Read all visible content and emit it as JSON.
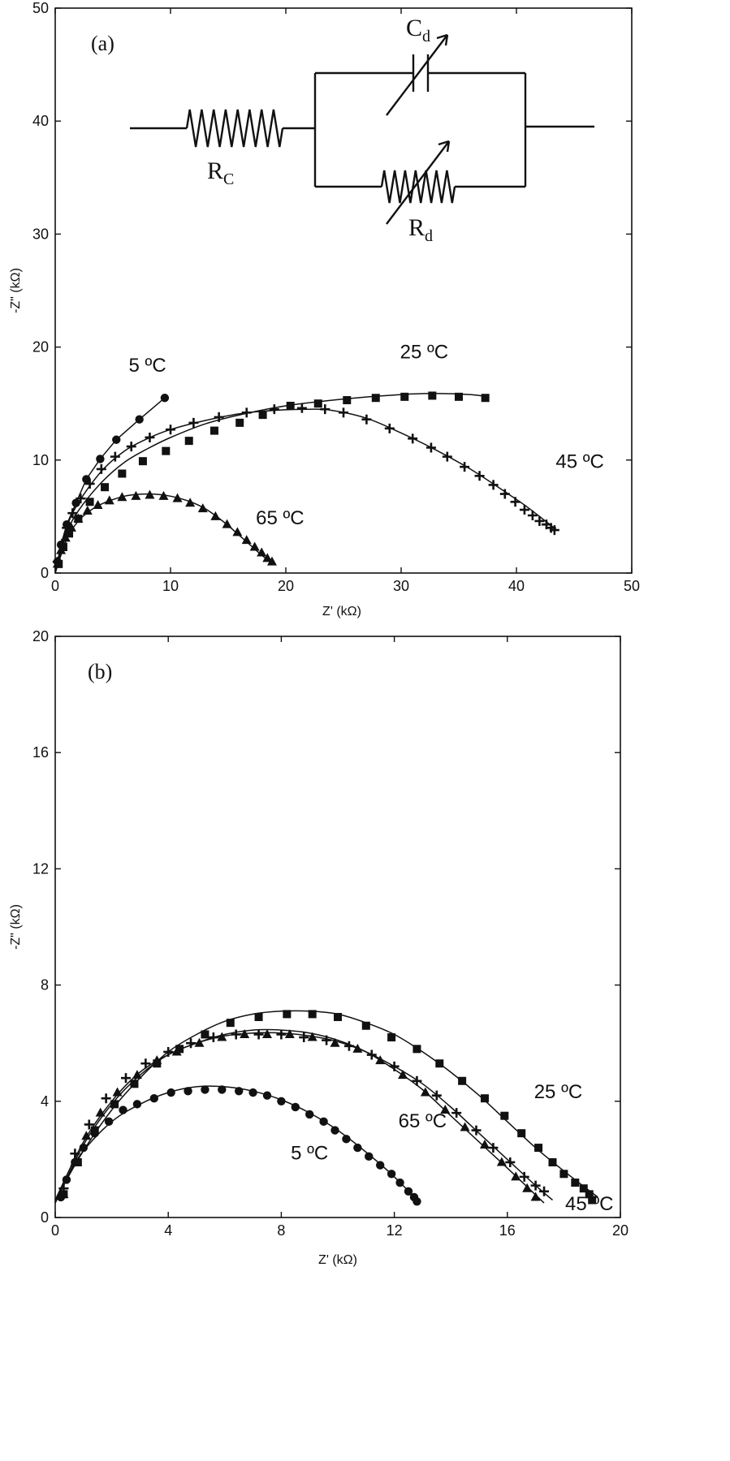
{
  "chart_data": [
    {
      "type": "scatter",
      "panel_label": "(a)",
      "xlabel": "Z' (kΩ)",
      "ylabel": "-Z\" (kΩ)",
      "xlim": [
        0,
        50
      ],
      "ylim": [
        0,
        50
      ],
      "xticks": [
        0,
        10,
        20,
        30,
        40,
        50
      ],
      "yticks": [
        0,
        10,
        20,
        30,
        40,
        50
      ],
      "xtick_labels": [
        "0",
        "10",
        "20",
        "30",
        "40",
        "50"
      ],
      "ytick_labels": [
        "0",
        "10",
        "20",
        "30",
        "40",
        "50"
      ],
      "grid": false,
      "circuit": {
        "rc_label": "R",
        "rc_sub": "C",
        "cd_label": "C",
        "cd_sub": "d",
        "rd_label": "R",
        "rd_sub": "d"
      },
      "series": [
        {
          "name": "5 °C",
          "marker": "circle",
          "fit": "connect",
          "x": [
            0.2,
            0.5,
            1.0,
            1.8,
            2.7,
            3.9,
            5.3,
            7.3,
            9.5
          ],
          "y": [
            1.0,
            2.5,
            4.3,
            6.2,
            8.3,
            10.1,
            11.8,
            13.6,
            15.5
          ]
        },
        {
          "name": "25 °C",
          "marker": "square",
          "fit": "smooth",
          "x": [
            0.3,
            0.7,
            1.2,
            2.0,
            3.0,
            4.3,
            5.8,
            7.6,
            9.6,
            11.6,
            13.8,
            16.0,
            18.0,
            20.4,
            22.8,
            25.3,
            27.8,
            30.3,
            32.7,
            35.0,
            37.3
          ],
          "y": [
            0.8,
            2.3,
            3.5,
            4.8,
            6.3,
            7.6,
            8.8,
            9.9,
            10.8,
            11.7,
            12.6,
            13.3,
            14.0,
            14.8,
            15.0,
            15.3,
            15.5,
            15.6,
            15.7,
            15.6,
            15.5
          ],
          "fit_x": [
            0,
            1,
            2,
            4,
            6,
            8,
            10,
            13,
            16,
            20,
            25,
            30,
            33,
            36,
            37.5
          ],
          "fit_y": [
            0,
            3.5,
            5.5,
            8,
            9.8,
            11,
            12,
            13.2,
            14,
            14.8,
            15.4,
            15.8,
            15.9,
            15.8,
            15.6
          ]
        },
        {
          "name": "45 °C",
          "marker": "plus",
          "fit": "smooth",
          "x": [
            0.2,
            0.6,
            1.0,
            1.5,
            2.2,
            3.0,
            4.0,
            5.2,
            6.6,
            8.2,
            10.0,
            12.0,
            14.2,
            16.6,
            19.0,
            21.4,
            23.4,
            25.0,
            27.0,
            29.0,
            31.0,
            32.6,
            34.0,
            35.5,
            36.8,
            38.0,
            39.0,
            39.9,
            40.7,
            41.4,
            42.0,
            42.6,
            43.0,
            43.3
          ],
          "y": [
            1.0,
            2.6,
            4.0,
            5.3,
            6.6,
            7.9,
            9.2,
            10.3,
            11.2,
            12.0,
            12.7,
            13.3,
            13.8,
            14.2,
            14.5,
            14.6,
            14.5,
            14.2,
            13.6,
            12.8,
            11.9,
            11.1,
            10.3,
            9.4,
            8.6,
            7.8,
            7.0,
            6.3,
            5.6,
            5.1,
            4.6,
            4.3,
            4.0,
            3.8
          ],
          "fit_x": [
            0,
            1,
            2,
            4,
            6,
            8,
            10,
            13,
            16,
            19,
            22,
            24,
            27,
            30,
            33,
            36,
            39,
            41,
            43.5
          ],
          "fit_y": [
            0,
            4,
            6.2,
            9,
            10.8,
            11.9,
            12.7,
            13.5,
            14.1,
            14.4,
            14.5,
            14.4,
            13.7,
            12.4,
            10.9,
            9.2,
            7.2,
            5.8,
            3.8
          ]
        },
        {
          "name": "65 °C",
          "marker": "triangle",
          "fit": "smooth",
          "x": [
            0.2,
            0.5,
            0.9,
            1.4,
            2.0,
            2.8,
            3.7,
            4.7,
            5.8,
            7.0,
            8.2,
            9.4,
            10.6,
            11.7,
            12.8,
            13.9,
            14.9,
            15.8,
            16.6,
            17.3,
            17.9,
            18.4,
            18.8
          ],
          "y": [
            0.8,
            2.0,
            3.1,
            4.0,
            4.8,
            5.5,
            6.0,
            6.4,
            6.7,
            6.8,
            6.9,
            6.8,
            6.6,
            6.2,
            5.7,
            5.0,
            4.3,
            3.6,
            2.9,
            2.3,
            1.8,
            1.3,
            1.0
          ],
          "fit_x": [
            0,
            1,
            2,
            3,
            4,
            5,
            6,
            7,
            8,
            9,
            10,
            11,
            12,
            13,
            14,
            15,
            16,
            17,
            18,
            18.9
          ],
          "fit_y": [
            0,
            3.0,
            4.6,
            5.5,
            6.1,
            6.5,
            6.8,
            6.95,
            7.0,
            6.95,
            6.8,
            6.55,
            6.2,
            5.7,
            5.0,
            4.2,
            3.3,
            2.4,
            1.5,
            0.8
          ]
        }
      ],
      "annotations": [
        {
          "text": "5 ºC",
          "x": 8.0,
          "y": 17.8
        },
        {
          "text": "25 ºC",
          "x": 32.0,
          "y": 19.0
        },
        {
          "text": "45 ºC",
          "x": 45.5,
          "y": 9.3
        },
        {
          "text": "65 ºC",
          "x": 19.5,
          "y": 4.3
        }
      ]
    },
    {
      "type": "scatter",
      "panel_label": "(b)",
      "xlabel": "Z' (kΩ)",
      "ylabel": "-Z\" (kΩ)",
      "xlim": [
        0,
        20
      ],
      "ylim": [
        0,
        20
      ],
      "xticks": [
        0,
        4,
        8,
        12,
        16,
        20
      ],
      "yticks": [
        0,
        4,
        8,
        12,
        16,
        20
      ],
      "xtick_labels": [
        "0",
        "4",
        "8",
        "12",
        "16",
        "20"
      ],
      "ytick_labels": [
        "0",
        "4",
        "8",
        "12",
        "16",
        "20"
      ],
      "grid": false,
      "series": [
        {
          "name": "5 °C",
          "marker": "circle",
          "fit": "smooth",
          "x": [
            0.2,
            0.4,
            0.7,
            1.0,
            1.4,
            1.9,
            2.4,
            2.9,
            3.5,
            4.1,
            4.7,
            5.3,
            5.9,
            6.5,
            7.0,
            7.5,
            8.0,
            8.5,
            9.0,
            9.5,
            9.9,
            10.3,
            10.7,
            11.1,
            11.5,
            11.9,
            12.2,
            12.5,
            12.7,
            12.8
          ],
          "y": [
            0.7,
            1.3,
            1.9,
            2.4,
            2.9,
            3.3,
            3.7,
            3.9,
            4.1,
            4.3,
            4.35,
            4.4,
            4.4,
            4.35,
            4.3,
            4.2,
            4.0,
            3.8,
            3.55,
            3.3,
            3.0,
            2.7,
            2.4,
            2.1,
            1.8,
            1.5,
            1.2,
            0.9,
            0.7,
            0.55
          ],
          "fit_x": [
            0,
            0.5,
            1,
            2,
            3,
            4,
            5,
            6,
            7,
            8,
            9,
            10,
            11,
            12,
            12.9
          ],
          "fit_y": [
            0.5,
            1.5,
            2.3,
            3.3,
            3.9,
            4.3,
            4.5,
            4.5,
            4.35,
            4.05,
            3.6,
            3.0,
            2.25,
            1.4,
            0.5
          ]
        },
        {
          "name": "25 °C",
          "marker": "square",
          "fit": "smooth",
          "x": [
            0.3,
            0.8,
            1.4,
            2.1,
            2.8,
            3.6,
            4.4,
            5.3,
            6.2,
            7.2,
            8.2,
            9.1,
            10.0,
            11.0,
            11.9,
            12.8,
            13.6,
            14.4,
            15.2,
            15.9,
            16.5,
            17.1,
            17.6,
            18.0,
            18.4,
            18.7,
            18.9,
            19.0
          ],
          "y": [
            0.8,
            1.9,
            3.0,
            3.9,
            4.6,
            5.3,
            5.8,
            6.3,
            6.7,
            6.9,
            7.0,
            7.0,
            6.9,
            6.6,
            6.2,
            5.8,
            5.3,
            4.7,
            4.1,
            3.5,
            2.9,
            2.4,
            1.9,
            1.5,
            1.2,
            1.0,
            0.8,
            0.6
          ],
          "fit_x": [
            0,
            1,
            2,
            3,
            4,
            5,
            6,
            7,
            8,
            9,
            10,
            11,
            12,
            13,
            14,
            15,
            16,
            17,
            18,
            19.2
          ],
          "fit_y": [
            0.6,
            2.3,
            3.7,
            4.8,
            5.7,
            6.3,
            6.75,
            7.0,
            7.1,
            7.1,
            7.0,
            6.7,
            6.3,
            5.7,
            5.0,
            4.2,
            3.3,
            2.4,
            1.6,
            0.7
          ]
        },
        {
          "name": "45 °C",
          "marker": "plus",
          "fit": "smooth",
          "x": [
            0.3,
            0.7,
            1.2,
            1.8,
            2.5,
            3.2,
            4.0,
            4.8,
            5.6,
            6.4,
            7.2,
            8.0,
            8.8,
            9.6,
            10.4,
            11.2,
            12.0,
            12.8,
            13.5,
            14.2,
            14.9,
            15.5,
            16.1,
            16.6,
            17.0,
            17.3
          ],
          "y": [
            1.0,
            2.2,
            3.2,
            4.1,
            4.8,
            5.3,
            5.7,
            6.0,
            6.2,
            6.3,
            6.3,
            6.3,
            6.2,
            6.1,
            5.9,
            5.6,
            5.2,
            4.7,
            4.2,
            3.6,
            3.0,
            2.4,
            1.9,
            1.4,
            1.1,
            0.9
          ],
          "fit_x": [
            0,
            1,
            2,
            3,
            4,
            5,
            6,
            7,
            8,
            9,
            10,
            11,
            12,
            13,
            14,
            15,
            16,
            17,
            17.6
          ],
          "fit_y": [
            0.6,
            2.6,
            4.0,
            5.0,
            5.6,
            6.0,
            6.25,
            6.35,
            6.35,
            6.25,
            6.05,
            5.7,
            5.2,
            4.6,
            3.8,
            2.9,
            2.0,
            1.1,
            0.6
          ]
        },
        {
          "name": "65 °C",
          "marker": "triangle",
          "fit": "smooth",
          "x": [
            0.3,
            0.7,
            1.1,
            1.6,
            2.2,
            2.9,
            3.6,
            4.3,
            5.1,
            5.9,
            6.7,
            7.5,
            8.3,
            9.1,
            9.9,
            10.7,
            11.5,
            12.3,
            13.1,
            13.8,
            14.5,
            15.2,
            15.8,
            16.3,
            16.7,
            17.0
          ],
          "y": [
            0.8,
            1.9,
            2.8,
            3.6,
            4.3,
            4.9,
            5.4,
            5.7,
            6.0,
            6.2,
            6.3,
            6.3,
            6.3,
            6.2,
            6.0,
            5.8,
            5.4,
            4.9,
            4.3,
            3.7,
            3.1,
            2.5,
            1.9,
            1.4,
            1.0,
            0.7
          ],
          "fit_x": [
            0,
            1,
            2,
            3,
            4,
            5,
            6,
            7,
            8,
            9,
            10,
            11,
            12,
            13,
            14,
            15,
            16,
            17.3
          ],
          "fit_y": [
            0.5,
            2.5,
            3.9,
            4.9,
            5.6,
            6.0,
            6.3,
            6.45,
            6.45,
            6.35,
            6.1,
            5.7,
            5.1,
            4.4,
            3.5,
            2.6,
            1.7,
            0.5
          ]
        }
      ],
      "annotations": [
        {
          "text": "25 ºC",
          "x": 17.8,
          "y": 4.1
        },
        {
          "text": "65 ºC",
          "x": 13.0,
          "y": 3.1
        },
        {
          "text": "5 ºC",
          "x": 9.0,
          "y": 2.0
        },
        {
          "text": "45 ºC",
          "x": 18.9,
          "y": 0.25
        }
      ]
    }
  ]
}
